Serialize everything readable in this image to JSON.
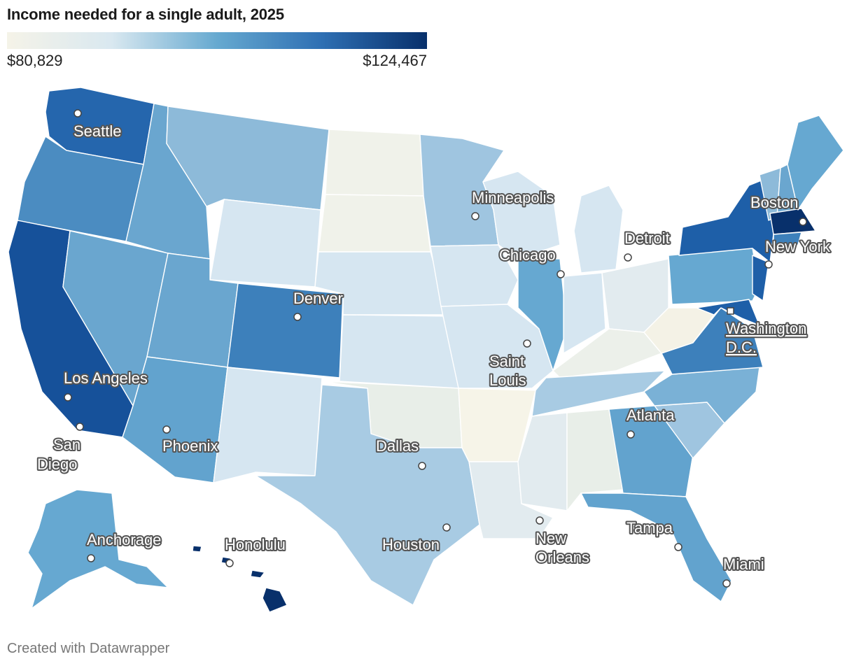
{
  "title": "Income needed for a single adult, 2025",
  "legend": {
    "min_label": "$80,829",
    "max_label": "$124,467",
    "colors": [
      "#f5f3e8",
      "#d9e8f0",
      "#66a9d0",
      "#2e6fb3",
      "#08306b"
    ]
  },
  "footer": "Created with Datawrapper",
  "cities": [
    {
      "name": "Seattle",
      "lines": [
        "Seattle"
      ]
    },
    {
      "name": "Minneapolis",
      "lines": [
        "Minneapolis"
      ]
    },
    {
      "name": "Boston",
      "lines": [
        "Boston"
      ]
    },
    {
      "name": "Detroit",
      "lines": [
        "Detroit"
      ]
    },
    {
      "name": "Chicago",
      "lines": [
        "Chicago"
      ]
    },
    {
      "name": "New York",
      "lines": [
        "New York"
      ]
    },
    {
      "name": "Denver",
      "lines": [
        "Denver"
      ]
    },
    {
      "name": "Washington D.C.",
      "lines": [
        "Washington",
        "D.C."
      ]
    },
    {
      "name": "Saint Louis",
      "lines": [
        "Saint",
        "Louis"
      ]
    },
    {
      "name": "Los Angeles",
      "lines": [
        "Los Angeles"
      ]
    },
    {
      "name": "Atlanta",
      "lines": [
        "Atlanta"
      ]
    },
    {
      "name": "San Diego",
      "lines": [
        "San",
        "Diego"
      ]
    },
    {
      "name": "Phoenix",
      "lines": [
        "Phoenix"
      ]
    },
    {
      "name": "Dallas",
      "lines": [
        "Dallas"
      ]
    },
    {
      "name": "Houston",
      "lines": [
        "Houston"
      ]
    },
    {
      "name": "New Orleans",
      "lines": [
        "New",
        "Orleans"
      ]
    },
    {
      "name": "Tampa",
      "lines": [
        "Tampa"
      ]
    },
    {
      "name": "Anchorage",
      "lines": [
        "Anchorage"
      ]
    },
    {
      "name": "Honolulu",
      "lines": [
        "Honolulu"
      ]
    },
    {
      "name": "Miami",
      "lines": [
        "Miami"
      ]
    }
  ]
}
